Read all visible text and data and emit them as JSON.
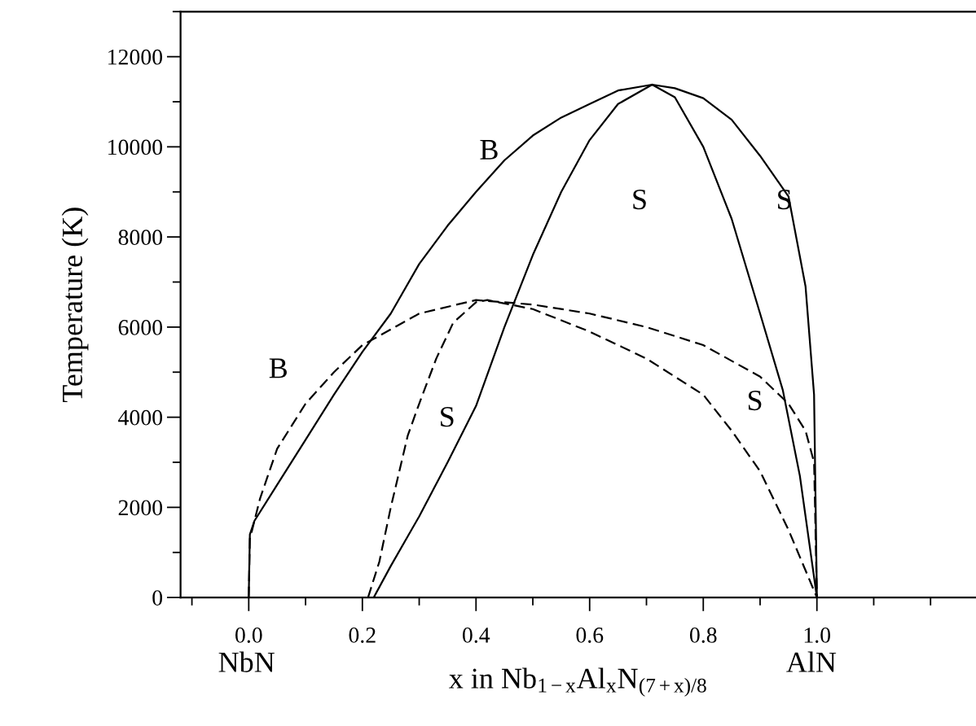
{
  "chart_data": {
    "type": "line",
    "xlabel": "x in Nb$_{1−x}$Al$_{x}$N$_{(7+x)/8}$",
    "ylabel": "Temperature (K)",
    "xlim": [
      -0.12,
      1.28
    ],
    "ylim": [
      0,
      13000
    ],
    "xticks": [
      {
        "value": 0,
        "label": "0.0"
      },
      0.2,
      0.4,
      0.6,
      0.8,
      {
        "value": 1,
        "label": "1.0"
      }
    ],
    "yticks": [
      0,
      2000,
      4000,
      6000,
      8000,
      10000,
      12000
    ],
    "grid": false,
    "legend": false,
    "marker": "none",
    "series": [
      {
        "color": "#000000",
        "line_style": "solid",
        "x": [
          0,
          0.002,
          0.01,
          0.05,
          0.1,
          0.15,
          0.2,
          0.25,
          0.3,
          0.35,
          0.4,
          0.45,
          0.5,
          0.55,
          0.6,
          0.65,
          0.71,
          0.75,
          0.8,
          0.85,
          0.9,
          0.95,
          0.98,
          0.995,
          1.0
        ],
        "values": [
          0,
          1400,
          1700,
          2500,
          3500,
          4500,
          5450,
          6300,
          7400,
          8250,
          9000,
          9700,
          10250,
          10650,
          10950,
          11250,
          11380,
          11300,
          11080,
          10600,
          9800,
          8900,
          6900,
          4500,
          0
        ]
      },
      {
        "color": "#000000",
        "line_style": "solid",
        "x": [
          0.22,
          0.25,
          0.3,
          0.35,
          0.4,
          0.45,
          0.5,
          0.55,
          0.6,
          0.65,
          0.71,
          0.75,
          0.8,
          0.85,
          0.9,
          0.94,
          0.97,
          1.0
        ],
        "values": [
          0,
          700,
          1800,
          3000,
          4250,
          6000,
          7600,
          9000,
          10150,
          10950,
          11380,
          11100,
          10000,
          8400,
          6300,
          4600,
          2700,
          0
        ]
      },
      {
        "color": "#000000",
        "line_style": "dashed",
        "x": [
          0,
          0.002,
          0.02,
          0.05,
          0.1,
          0.15,
          0.2,
          0.3,
          0.4,
          0.5,
          0.6,
          0.7,
          0.8,
          0.9,
          0.95,
          0.98,
          0.995,
          1.0
        ],
        "values": [
          0,
          1300,
          2200,
          3300,
          4300,
          5000,
          5600,
          6300,
          6600,
          6500,
          6300,
          6000,
          5600,
          4900,
          4300,
          3700,
          3000,
          0
        ]
      },
      {
        "color": "#000000",
        "line_style": "dashed",
        "x": [
          0.21,
          0.23,
          0.25,
          0.28,
          0.3,
          0.33,
          0.36,
          0.4,
          0.42,
          0.5,
          0.6,
          0.7,
          0.8,
          0.85,
          0.9,
          0.95,
          1.0
        ],
        "values": [
          0,
          800,
          2000,
          3600,
          4300,
          5300,
          6100,
          6550,
          6600,
          6400,
          5900,
          5300,
          4500,
          3700,
          2800,
          1500,
          0
        ]
      }
    ],
    "annotations": [
      "B",
      "S",
      "S",
      "B",
      "S",
      "S",
      "NbN",
      "AlN"
    ]
  }
}
